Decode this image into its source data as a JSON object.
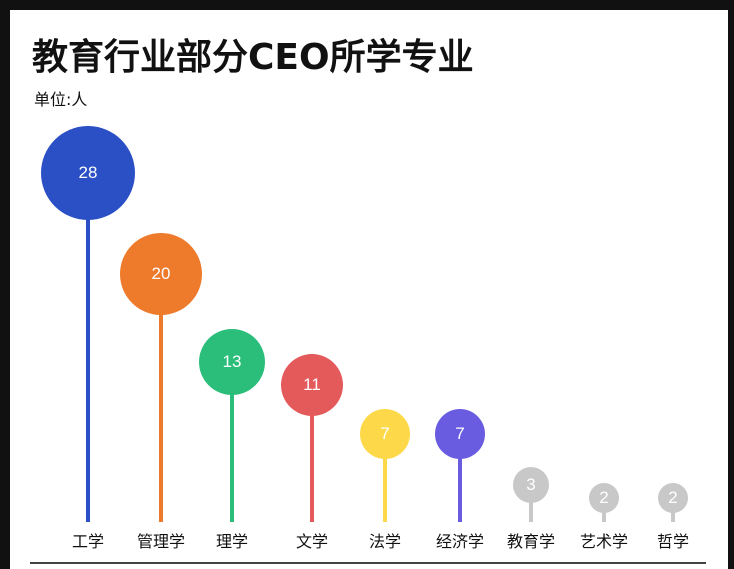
{
  "title": "教育行业部分CEO所学专业",
  "unit": "单位:人",
  "chart_data": {
    "type": "lollipop",
    "title": "教育行业部分CEO所学专业",
    "subtitle": "单位:人",
    "categories": [
      "工学",
      "管理学",
      "理学",
      "文学",
      "法学",
      "经济学",
      "教育学",
      "艺术学",
      "哲学"
    ],
    "values": [
      28,
      20,
      13,
      11,
      7,
      7,
      3,
      2,
      2
    ],
    "colors": [
      "#2b4fc4",
      "#ee7a2b",
      "#2bbd7a",
      "#e45a5a",
      "#fdd94a",
      "#6a5ce0",
      "#c8c8c8",
      "#c8c8c8",
      "#c8c8c8"
    ],
    "xlabel": "",
    "ylabel": "",
    "grid": false,
    "legend": "none"
  }
}
